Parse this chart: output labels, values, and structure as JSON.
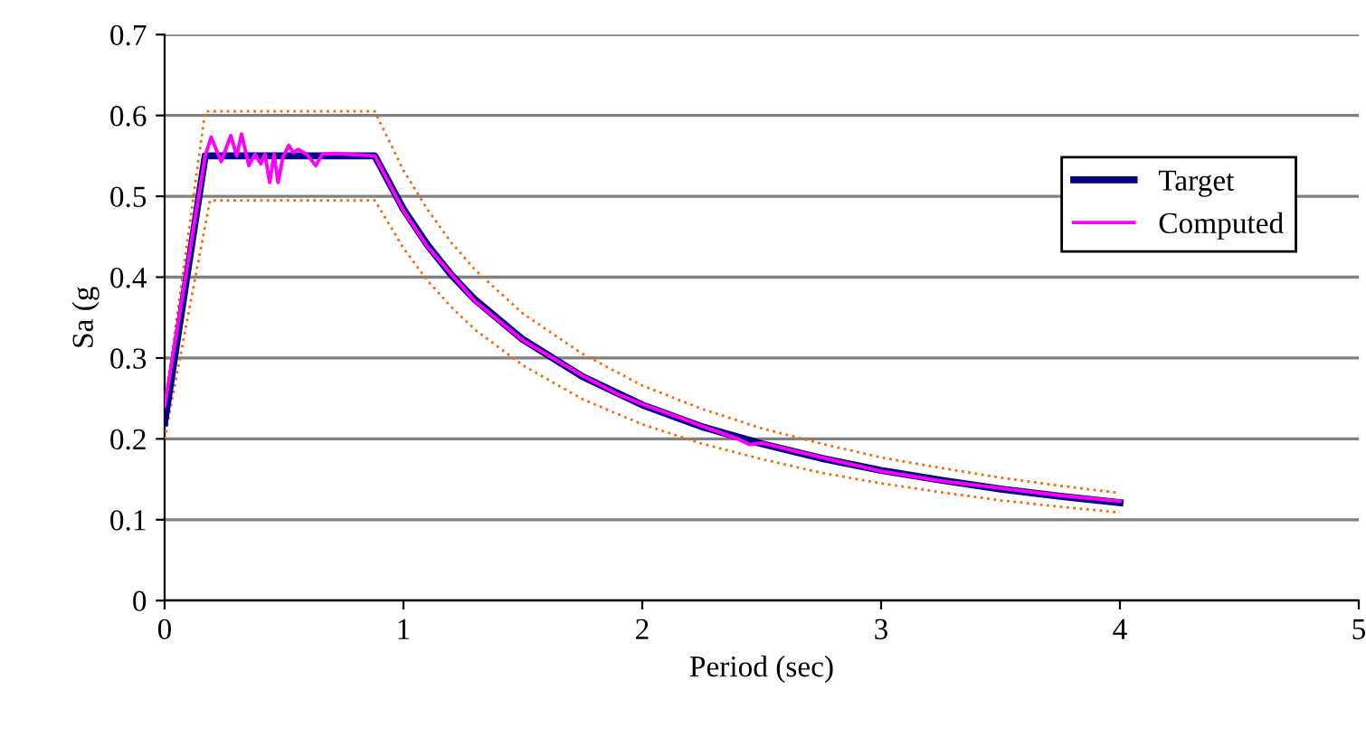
{
  "chart_data": {
    "type": "line",
    "xlabel": "Period (sec)",
    "ylabel": "Sa (g",
    "xlim": [
      0,
      5
    ],
    "xticks": [
      0,
      1,
      2,
      3,
      4,
      5
    ],
    "ylim": [
      0,
      0.7
    ],
    "yticks": [
      0,
      0.1,
      0.2,
      0.3,
      0.4,
      0.5,
      0.6,
      0.7
    ],
    "grid": "y",
    "legend": "right",
    "marker": "none",
    "series": [
      {
        "color": "#ff6600",
        "line_style": "dotted",
        "x": [
          0,
          0.17,
          0.88,
          1.0,
          1.1,
          1.2,
          1.3,
          1.5,
          1.75,
          2,
          2.25,
          2.5,
          2.75,
          3,
          3.25,
          3.5,
          3.75,
          4
        ],
        "values": [
          0.24,
          0.605,
          0.605,
          0.532,
          0.484,
          0.443,
          0.409,
          0.355,
          0.305,
          0.266,
          0.237,
          0.213,
          0.194,
          0.177,
          0.164,
          0.152,
          0.142,
          0.133
        ]
      },
      {
        "color": "#ff6600",
        "line_style": "dotted",
        "x": [
          0,
          0.19,
          0.88,
          1.0,
          1.1,
          1.2,
          1.3,
          1.5,
          1.75,
          2,
          2.25,
          2.5,
          2.75,
          3,
          3.25,
          3.5,
          3.75,
          4
        ],
        "values": [
          0.2,
          0.495,
          0.495,
          0.436,
          0.396,
          0.363,
          0.335,
          0.291,
          0.249,
          0.218,
          0.194,
          0.175,
          0.158,
          0.145,
          0.134,
          0.124,
          0.116,
          0.109
        ]
      },
      {
        "name": "Target",
        "color": "#000080",
        "line_style": "solid",
        "x": [
          0,
          0.17,
          0.88,
          1.0,
          1.1,
          1.2,
          1.3,
          1.5,
          1.75,
          2,
          2.25,
          2.5,
          2.75,
          3,
          3.25,
          3.5,
          3.75,
          4
        ],
        "values": [
          0.22,
          0.55,
          0.55,
          0.484,
          0.44,
          0.403,
          0.372,
          0.323,
          0.277,
          0.242,
          0.215,
          0.194,
          0.176,
          0.161,
          0.149,
          0.138,
          0.129,
          0.121
        ]
      },
      {
        "name": "Computed",
        "color": "#ff00ff",
        "line_style": "solid",
        "x": [
          0,
          0.17,
          0.195,
          0.237,
          0.277,
          0.302,
          0.322,
          0.353,
          0.378,
          0.403,
          0.42,
          0.44,
          0.458,
          0.475,
          0.495,
          0.52,
          0.538,
          0.558,
          0.595,
          0.633,
          0.66,
          0.71,
          0.88,
          1.0,
          1.1,
          1.2,
          1.3,
          1.5,
          1.75,
          1.9,
          2,
          2.25,
          2.4,
          2.45,
          2.5,
          2.75,
          3,
          3.25,
          3.5,
          3.75,
          4
        ],
        "values": [
          0.24,
          0.55,
          0.573,
          0.543,
          0.575,
          0.55,
          0.577,
          0.538,
          0.552,
          0.54,
          0.552,
          0.517,
          0.552,
          0.517,
          0.548,
          0.563,
          0.554,
          0.558,
          0.552,
          0.538,
          0.552,
          0.553,
          0.55,
          0.482,
          0.438,
          0.404,
          0.37,
          0.322,
          0.278,
          0.255,
          0.243,
          0.216,
          0.2,
          0.193,
          0.195,
          0.177,
          0.16,
          0.148,
          0.139,
          0.13,
          0.123
        ]
      }
    ]
  }
}
